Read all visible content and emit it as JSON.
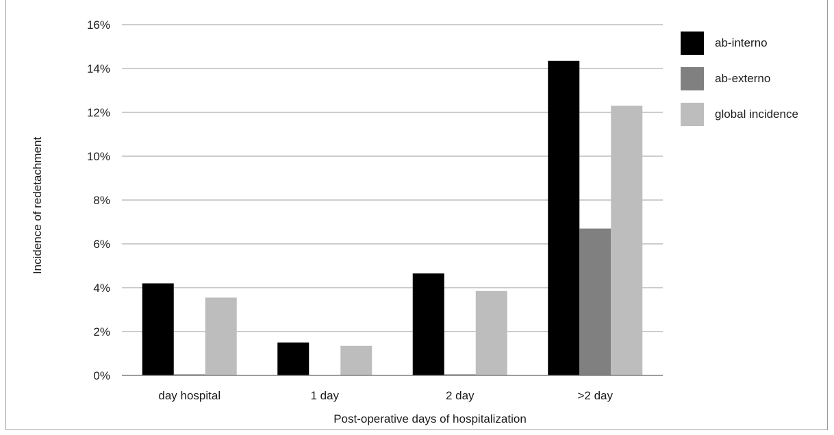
{
  "chart_data": {
    "type": "bar",
    "title": "",
    "xlabel": "Post-operative days of hospitalization",
    "ylabel": "Incidence of redetachment",
    "categories": [
      "day hospital",
      "1 day",
      "2 day",
      ">2 day"
    ],
    "series": [
      {
        "name": "ab-interno",
        "color": "#000000",
        "values": [
          4.2,
          1.5,
          4.65,
          14.35
        ]
      },
      {
        "name": "ab-externo",
        "color": "#808080",
        "values": [
          0.05,
          0.0,
          0.05,
          6.7
        ]
      },
      {
        "name": "global incidence",
        "color": "#bdbdbd",
        "values": [
          3.55,
          1.35,
          3.85,
          12.3
        ]
      }
    ],
    "yticks": [
      "0%",
      "2%",
      "4%",
      "6%",
      "8%",
      "10%",
      "12%",
      "14%",
      "16%"
    ],
    "ylim": [
      0,
      16
    ],
    "grid": true,
    "legend": "right"
  },
  "colors": {
    "axis": "#7f7f7f",
    "grid": "#9b9b9b"
  }
}
